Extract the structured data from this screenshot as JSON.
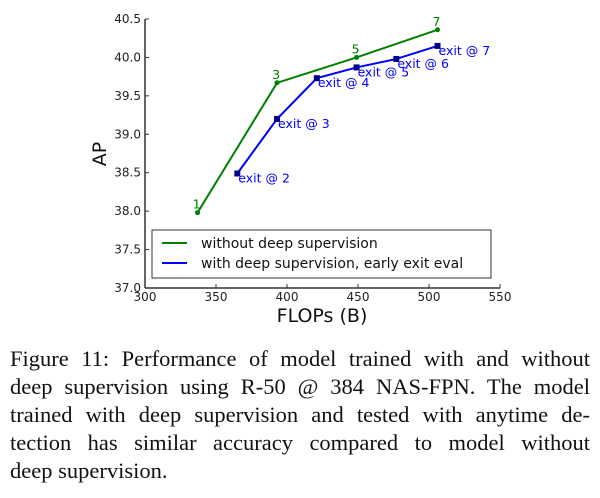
{
  "chart_data": {
    "type": "line",
    "xlabel": "FLOPs (B)",
    "ylabel": "AP",
    "xlim": [
      300,
      550
    ],
    "ylim": [
      37.0,
      40.5
    ],
    "xticks": [
      "300",
      "350",
      "400",
      "450",
      "500",
      "550"
    ],
    "yticks": [
      "37.0",
      "37.5",
      "38.0",
      "38.5",
      "39.0",
      "39.5",
      "40.0",
      "40.5"
    ],
    "legend_position": "lower-right",
    "grid": false,
    "series": [
      {
        "name": "without deep supervision",
        "color": "#008000",
        "marker": "circle",
        "x": [
          337,
          393,
          449,
          506
        ],
        "y": [
          37.98,
          39.67,
          40.0,
          40.36
        ],
        "labels": [
          "1",
          "3",
          "5",
          "7"
        ]
      },
      {
        "name": "with deep supervision, early exit eval",
        "color": "#0000ff",
        "marker": "square",
        "x": [
          365,
          393,
          421,
          449,
          477,
          506
        ],
        "y": [
          38.49,
          39.2,
          39.73,
          39.87,
          39.98,
          40.15
        ],
        "labels": [
          "exit @ 2",
          "exit @ 3",
          "exit @ 4",
          "exit @ 5",
          "exit @ 6",
          "exit @ 7"
        ]
      }
    ]
  },
  "caption": {
    "lines": [
      "Figure 11: Performance of model trained with and without",
      "deep supervision using R-50 @ 384 NAS-FPN. The model",
      "trained with deep supervision and tested with anytime de-",
      "tection has similar accuracy compared to model without",
      "deep supervision."
    ]
  }
}
